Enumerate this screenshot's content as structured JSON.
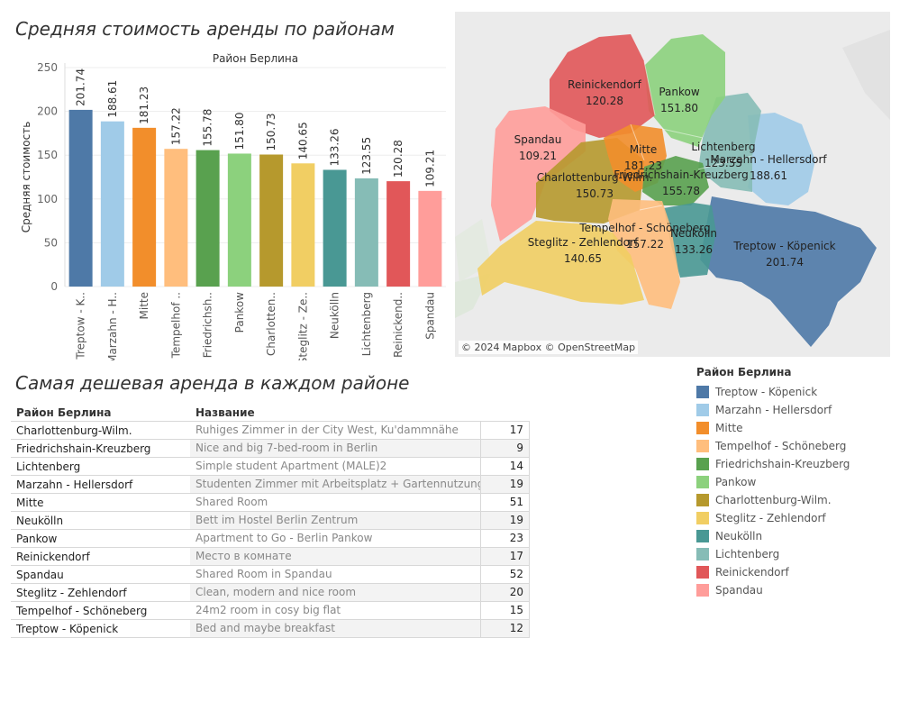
{
  "titles": {
    "bar_chart": "Средняя стоимость аренды по районам",
    "table": "Самая дешевая аренда в каждом районе"
  },
  "chart_data": {
    "type": "bar",
    "title": "Средняя стоимость аренды по районам",
    "xlabel": "Район Берлина",
    "ylabel": "Средняя стоимость",
    "ylim": [
      0,
      250
    ],
    "yticks": [
      0,
      50,
      100,
      150,
      200,
      250
    ],
    "categories": [
      "Treptow - Köpenick",
      "Marzahn - Hellersdorf",
      "Mitte",
      "Tempelhof - Schöneberg",
      "Friedrichshain-Kreuzberg",
      "Pankow",
      "Charlottenburg-Wilm.",
      "Steglitz - Zehlendorf",
      "Neukölln",
      "Lichtenberg",
      "Reinickendorf",
      "Spandau"
    ],
    "tick_labels": [
      "Treptow - K..",
      "Marzahn - H..",
      "Mitte",
      "Tempelhof ..",
      "Friedrichsh..",
      "Pankow",
      "Charlotten..",
      "Steglitz - Ze..",
      "Neukölln",
      "Lichtenberg",
      "Reinickend..",
      "Spandau"
    ],
    "values": [
      201.74,
      188.61,
      181.23,
      157.22,
      155.78,
      151.8,
      150.73,
      140.65,
      133.26,
      123.55,
      120.28,
      109.21
    ],
    "value_labels": [
      "201.74",
      "188.61",
      "181.23",
      "157.22",
      "155.78",
      "151.80",
      "150.73",
      "140.65",
      "133.26",
      "123.55",
      "120.28",
      "109.21"
    ],
    "colors": [
      "#4e79a7",
      "#a0cbe8",
      "#f28e2b",
      "#ffbe7d",
      "#59a14f",
      "#8cd17d",
      "#b6992d",
      "#f1ce63",
      "#499894",
      "#86bcb6",
      "#e15759",
      "#ff9d9a"
    ],
    "grid": true
  },
  "map": {
    "attribution": "© 2024 Mapbox © OpenStreetMap",
    "districts": [
      {
        "name": "Reinickendorf",
        "value": "120.28",
        "color": "#e15759"
      },
      {
        "name": "Pankow",
        "value": "151.80",
        "color": "#8cd17d"
      },
      {
        "name": "Spandau",
        "value": "109.21",
        "color": "#ff9d9a"
      },
      {
        "name": "Mitte",
        "value": "181.23",
        "color": "#f28e2b"
      },
      {
        "name": "Lichtenberg",
        "value": "123.55",
        "color": "#86bcb6"
      },
      {
        "name": "Marzahn - Hellersdorf",
        "value": "188.61",
        "color": "#a0cbe8"
      },
      {
        "name": "Charlottenburg-Wilm.",
        "value": "150.73",
        "color": "#b6992d"
      },
      {
        "name": "Friedrichshain-Kreuzberg",
        "value": "155.78",
        "color": "#59a14f"
      },
      {
        "name": "Tempelhof - Schöneberg",
        "value": "157.22",
        "color": "#ffbe7d"
      },
      {
        "name": "Neukölln",
        "value": "133.26",
        "color": "#499894"
      },
      {
        "name": "Steglitz - Zehlendorf",
        "value": "140.65",
        "color": "#f1ce63"
      },
      {
        "name": "Treptow - Köpenick",
        "value": "201.74",
        "color": "#4e79a7"
      }
    ]
  },
  "legend": {
    "title": "Район Берлина",
    "items": [
      {
        "label": "Treptow - Köpenick",
        "color": "#4e79a7"
      },
      {
        "label": "Marzahn - Hellersdorf",
        "color": "#a0cbe8"
      },
      {
        "label": "Mitte",
        "color": "#f28e2b"
      },
      {
        "label": "Tempelhof - Schöneberg",
        "color": "#ffbe7d"
      },
      {
        "label": "Friedrichshain-Kreuzberg",
        "color": "#59a14f"
      },
      {
        "label": "Pankow",
        "color": "#8cd17d"
      },
      {
        "label": "Charlottenburg-Wilm.",
        "color": "#b6992d"
      },
      {
        "label": "Steglitz - Zehlendorf",
        "color": "#f1ce63"
      },
      {
        "label": "Neukölln",
        "color": "#499894"
      },
      {
        "label": "Lichtenberg",
        "color": "#86bcb6"
      },
      {
        "label": "Reinickendorf",
        "color": "#e15759"
      },
      {
        "label": "Spandau",
        "color": "#ff9d9a"
      }
    ]
  },
  "table": {
    "headers": [
      "Район Берлина",
      "Название"
    ],
    "rows": [
      {
        "district": "Charlottenburg-Wilm.",
        "name": "Ruhiges Zimmer in der City West, Ku'dammnähe",
        "value": "17"
      },
      {
        "district": "Friedrichshain-Kreuzberg",
        "name": "Nice and big 7-bed-room in Berlin",
        "value": "9"
      },
      {
        "district": "Lichtenberg",
        "name": "Simple student Apartment (MALE)2",
        "value": "14"
      },
      {
        "district": "Marzahn - Hellersdorf",
        "name": "Studenten Zimmer mit Arbeitsplatz + Gartennutzung",
        "value": "19"
      },
      {
        "district": "Mitte",
        "name": "Shared Room",
        "value": "51"
      },
      {
        "district": "Neukölln",
        "name": "Bett im Hostel Berlin Zentrum",
        "value": "19"
      },
      {
        "district": "Pankow",
        "name": "Apartment to Go - Berlin Pankow",
        "value": "23"
      },
      {
        "district": "Reinickendorf",
        "name": "Место в комнате",
        "value": "17"
      },
      {
        "district": "Spandau",
        "name": "Shared Room in Spandau",
        "value": "52"
      },
      {
        "district": "Steglitz - Zehlendorf",
        "name": "Clean, modern and nice room",
        "value": "20"
      },
      {
        "district": "Tempelhof - Schöneberg",
        "name": "24m2 room in cosy big flat",
        "value": "15"
      },
      {
        "district": "Treptow - Köpenick",
        "name": "Bed and maybe breakfast",
        "value": "12"
      }
    ]
  }
}
